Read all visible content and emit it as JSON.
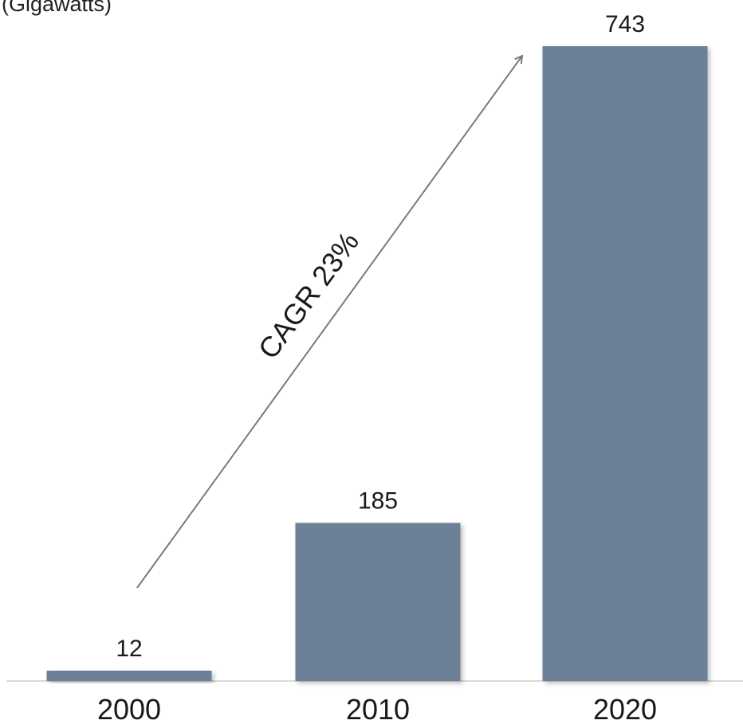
{
  "unit_label": "(Gigawatts)",
  "chart_data": {
    "type": "bar",
    "categories": [
      "2000",
      "2010",
      "2020"
    ],
    "values": [
      12,
      185,
      743
    ],
    "data_labels": [
      "12",
      "185",
      "743"
    ],
    "ylim": [
      0,
      743
    ],
    "grid": false,
    "legend": "none",
    "annotation": {
      "text": "CAGR 23%",
      "style": "diagonal arrow from first bar to last bar"
    },
    "colors": {
      "bar": "#6c8098",
      "bar_shadow": "#4a5868",
      "arrow": "#7a7a7a",
      "baseline": "#d9d9d9"
    }
  }
}
